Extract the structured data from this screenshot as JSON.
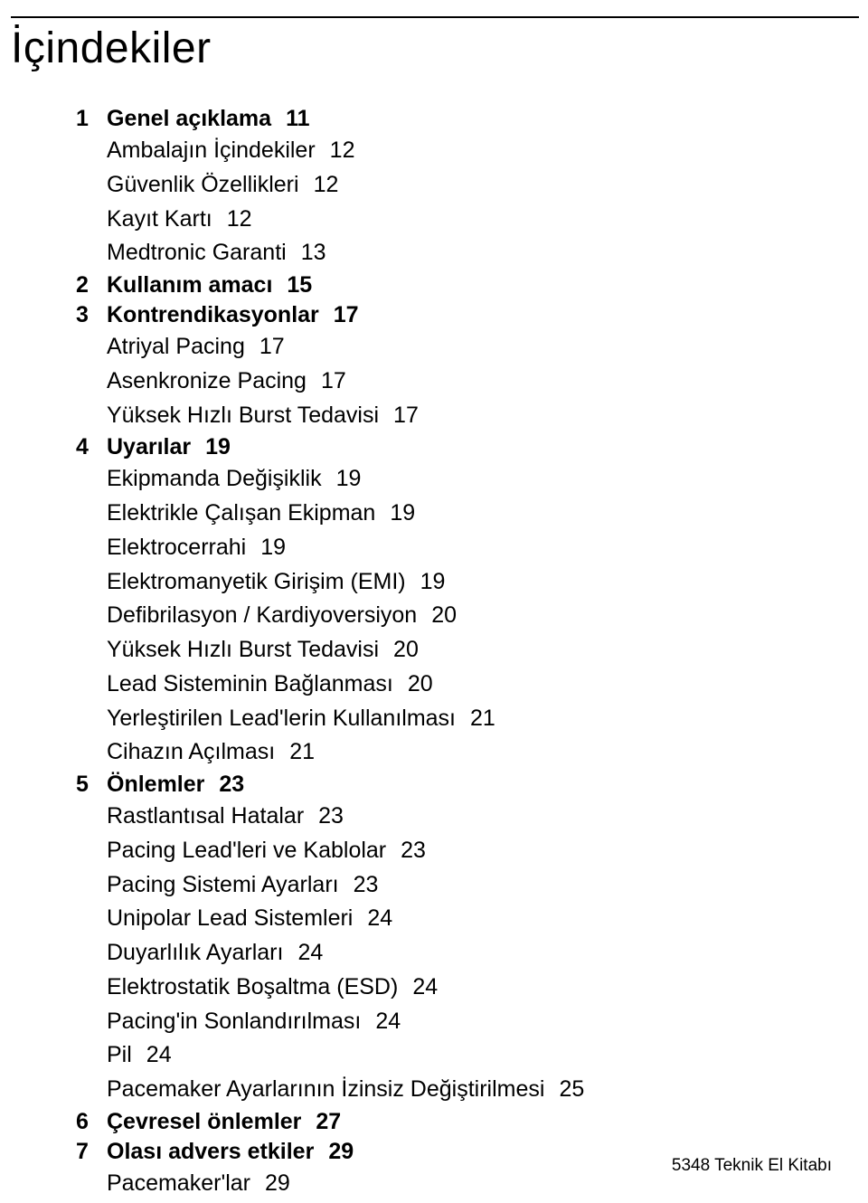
{
  "title": "İçindekiler",
  "footer": "5348 Teknik El Kitabı",
  "toc": {
    "sections": [
      {
        "num": "1",
        "title": "Genel açıklama",
        "page": "11",
        "items": [
          {
            "title": "Ambalajın İçindekiler",
            "page": "12"
          },
          {
            "title": "Güvenlik Özellikleri",
            "page": "12"
          },
          {
            "title": "Kayıt Kartı",
            "page": "12"
          },
          {
            "title": "Medtronic Garanti",
            "page": "13"
          }
        ]
      },
      {
        "num": "2",
        "title": "Kullanım amacı",
        "page": "15",
        "items": []
      },
      {
        "num": "3",
        "title": "Kontrendikasyonlar",
        "page": "17",
        "items": [
          {
            "title": "Atriyal Pacing",
            "page": "17"
          },
          {
            "title": "Asenkronize Pacing",
            "page": "17"
          },
          {
            "title": "Yüksek Hızlı Burst Tedavisi",
            "page": "17"
          }
        ]
      },
      {
        "num": "4",
        "title": "Uyarılar",
        "page": "19",
        "items": [
          {
            "title": "Ekipmanda Değişiklik",
            "page": "19"
          },
          {
            "title": "Elektrikle Çalışan Ekipman",
            "page": "19"
          },
          {
            "title": "Elektrocerrahi",
            "page": "19"
          },
          {
            "title": "Elektromanyetik Girişim (EMI)",
            "page": "19"
          },
          {
            "title": "Defibrilasyon / Kardiyoversiyon",
            "page": "20"
          },
          {
            "title": "Yüksek Hızlı Burst Tedavisi",
            "page": "20"
          },
          {
            "title": "Lead Sisteminin Bağlanması",
            "page": "20"
          },
          {
            "title": "Yerleştirilen Lead'lerin Kullanılması",
            "page": "21"
          },
          {
            "title": "Cihazın Açılması",
            "page": "21"
          }
        ]
      },
      {
        "num": "5",
        "title": "Önlemler",
        "page": "23",
        "items": [
          {
            "title": "Rastlantısal Hatalar",
            "page": "23"
          },
          {
            "title": "Pacing Lead'leri ve Kablolar",
            "page": "23"
          },
          {
            "title": "Pacing Sistemi Ayarları",
            "page": "23"
          },
          {
            "title": "Unipolar Lead Sistemleri",
            "page": "24"
          },
          {
            "title": "Duyarlılık Ayarları",
            "page": "24"
          },
          {
            "title": "Elektrostatik Boşaltma (ESD)",
            "page": "24"
          },
          {
            "title": "Pacing'in Sonlandırılması",
            "page": "24"
          },
          {
            "title": "Pil",
            "page": "24"
          },
          {
            "title": "Pacemaker Ayarlarının İzinsiz Değiştirilmesi",
            "page": "25"
          }
        ]
      },
      {
        "num": "6",
        "title": "Çevresel önlemler",
        "page": "27",
        "items": []
      },
      {
        "num": "7",
        "title": "Olası advers etkiler",
        "page": "29",
        "items": [
          {
            "title": "Pacemaker'lar",
            "page": "29"
          }
        ]
      }
    ]
  }
}
